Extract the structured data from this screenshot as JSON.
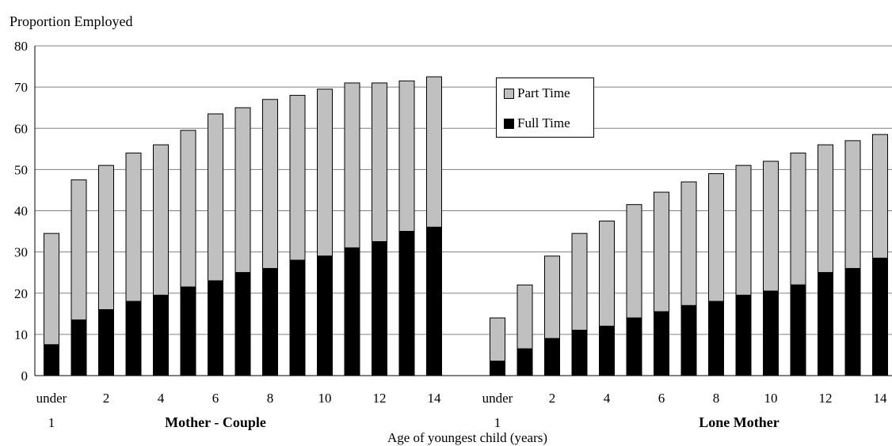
{
  "chart_data": {
    "type": "bar",
    "stacked": true,
    "ylabel": "Proportion Employed",
    "xlabel": "Age of youngest child (years)",
    "ylim": [
      0,
      80
    ],
    "yticks": [
      "0",
      "10",
      "20",
      "30",
      "40",
      "50",
      "60",
      "70",
      "80"
    ],
    "grid": true,
    "legend": {
      "position": "top-center",
      "entries": [
        {
          "name": "Part Time",
          "color": "#c0c0c0"
        },
        {
          "name": "Full Time",
          "color": "#000000"
        }
      ]
    },
    "groups": [
      {
        "label": "Mother - Couple",
        "tick_labels": [
          "under",
          "",
          "2",
          "",
          "4",
          "",
          "6",
          "",
          "8",
          "",
          "10",
          "",
          "12",
          "",
          "14"
        ],
        "first_tick_sub": "1",
        "full_time": [
          7.5,
          13.5,
          16,
          18,
          19.5,
          21.5,
          23,
          25,
          26,
          28,
          29,
          31,
          32.5,
          35,
          36
        ],
        "total": [
          34.5,
          47.5,
          51,
          54,
          56,
          59.5,
          63.5,
          65,
          67,
          68,
          69.5,
          71,
          71,
          71.5,
          72.5
        ]
      },
      {
        "label": "Lone Mother",
        "tick_labels": [
          "under",
          "",
          "2",
          "",
          "4",
          "",
          "6",
          "",
          "8",
          "",
          "10",
          "",
          "12",
          "",
          "14"
        ],
        "first_tick_sub": "1",
        "full_time": [
          3.5,
          6.5,
          9,
          11,
          12,
          14,
          15.5,
          17,
          18,
          19.5,
          20.5,
          22,
          25,
          26,
          28.5
        ],
        "total": [
          14,
          22,
          29,
          34.5,
          37.5,
          41.5,
          44.5,
          47,
          49,
          51,
          52,
          54,
          56,
          57,
          58.5
        ]
      }
    ],
    "colors": {
      "part_time": "#c0c0c0",
      "full_time": "#000000",
      "grid": "#808080"
    }
  }
}
